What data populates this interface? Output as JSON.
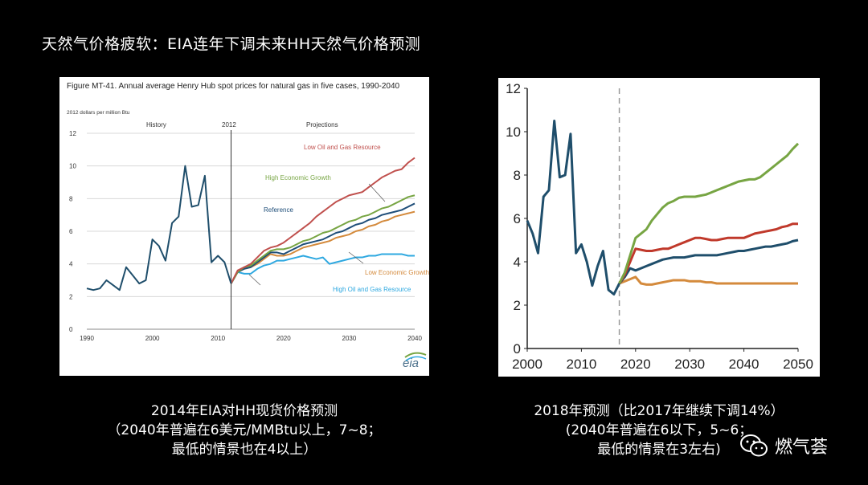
{
  "slide": {
    "title": "天然气价格疲软：EIA连年下调未来HH天然气价格预测"
  },
  "left_caption": {
    "line1": "2014年EIA对HH现货价格预测",
    "line2": "（2040年普遍在6美元/MMBtu以上，7~8；",
    "line3": "最低的情景也在4以上）"
  },
  "right_caption": {
    "line1": "2018年预测（比2017年继续下调14%）",
    "line2": "(2040年普遍在6以下，5~6；",
    "line3": "最低的情景在3左右)"
  },
  "watermark": {
    "text": "燃气荟",
    "icon": "wechat-icon"
  },
  "chart_data": [
    {
      "type": "line",
      "title": "Figure MT-41. Annual average Henry Hub spot prices for natural gas in five cases, 1990-2040",
      "ylabel": "2012 dollars per million Btu",
      "xlim": [
        1990,
        2040
      ],
      "ylim": [
        0,
        12
      ],
      "xticks": [
        1990,
        2000,
        2010,
        2020,
        2030,
        2040
      ],
      "yticks": [
        0,
        2,
        4,
        6,
        8,
        10,
        12
      ],
      "grid": true,
      "region_labels": {
        "history": "History",
        "divider": "2012",
        "projections": "Projections"
      },
      "divider_x": 2012,
      "logo": "eia",
      "series": [
        {
          "name": "History",
          "color": "#1f4e6b",
          "x": [
            1990,
            1991,
            1992,
            1993,
            1994,
            1995,
            1996,
            1997,
            1998,
            1999,
            2000,
            2001,
            2002,
            2003,
            2004,
            2005,
            2006,
            2007,
            2008,
            2009,
            2010,
            2011,
            2012
          ],
          "y": [
            2.5,
            2.4,
            2.5,
            3.0,
            2.7,
            2.4,
            3.8,
            3.3,
            2.8,
            3.0,
            5.5,
            5.1,
            4.2,
            6.5,
            6.9,
            10.0,
            7.5,
            7.6,
            9.4,
            4.1,
            4.5,
            4.1,
            2.8
          ]
        },
        {
          "name": "Low Oil and Gas Resource",
          "color": "#c0504d",
          "x": [
            2012,
            2013,
            2014,
            2015,
            2016,
            2017,
            2018,
            2019,
            2020,
            2021,
            2022,
            2023,
            2024,
            2025,
            2026,
            2027,
            2028,
            2029,
            2030,
            2031,
            2032,
            2033,
            2034,
            2035,
            2036,
            2037,
            2038,
            2039,
            2040
          ],
          "y": [
            2.8,
            3.6,
            3.8,
            4.0,
            4.4,
            4.8,
            5.0,
            5.1,
            5.3,
            5.6,
            5.9,
            6.2,
            6.5,
            6.9,
            7.2,
            7.5,
            7.8,
            8.0,
            8.2,
            8.3,
            8.4,
            8.7,
            9.0,
            9.3,
            9.5,
            9.7,
            9.8,
            10.2,
            10.5
          ]
        },
        {
          "name": "High Economic Growth",
          "color": "#77a543",
          "x": [
            2012,
            2013,
            2014,
            2015,
            2016,
            2017,
            2018,
            2019,
            2020,
            2021,
            2022,
            2023,
            2024,
            2025,
            2026,
            2027,
            2028,
            2029,
            2030,
            2031,
            2032,
            2033,
            2034,
            2035,
            2036,
            2037,
            2038,
            2039,
            2040
          ],
          "y": [
            2.8,
            3.5,
            3.8,
            3.9,
            4.2,
            4.5,
            4.8,
            4.9,
            4.9,
            5.0,
            5.2,
            5.4,
            5.5,
            5.7,
            5.9,
            6.0,
            6.2,
            6.4,
            6.6,
            6.7,
            6.9,
            7.0,
            7.2,
            7.4,
            7.5,
            7.7,
            7.9,
            8.1,
            8.2
          ]
        },
        {
          "name": "Reference",
          "color": "#1f4e79",
          "x": [
            2012,
            2013,
            2014,
            2015,
            2016,
            2017,
            2018,
            2019,
            2020,
            2021,
            2022,
            2023,
            2024,
            2025,
            2026,
            2027,
            2028,
            2029,
            2030,
            2031,
            2032,
            2033,
            2034,
            2035,
            2036,
            2037,
            2038,
            2039,
            2040
          ],
          "y": [
            2.8,
            3.5,
            3.7,
            3.8,
            4.1,
            4.4,
            4.7,
            4.7,
            4.6,
            4.8,
            5.0,
            5.2,
            5.3,
            5.4,
            5.5,
            5.7,
            5.9,
            6.0,
            6.2,
            6.4,
            6.5,
            6.7,
            6.8,
            7.0,
            7.1,
            7.2,
            7.3,
            7.5,
            7.7
          ]
        },
        {
          "name": "Low Economic Growth",
          "color": "#d48a3c",
          "x": [
            2012,
            2013,
            2014,
            2015,
            2016,
            2017,
            2018,
            2019,
            2020,
            2021,
            2022,
            2023,
            2024,
            2025,
            2026,
            2027,
            2028,
            2029,
            2030,
            2031,
            2032,
            2033,
            2034,
            2035,
            2036,
            2037,
            2038,
            2039,
            2040
          ],
          "y": [
            2.8,
            3.5,
            3.7,
            3.8,
            4.0,
            4.3,
            4.6,
            4.5,
            4.5,
            4.6,
            4.8,
            5.0,
            5.1,
            5.2,
            5.3,
            5.4,
            5.6,
            5.7,
            5.8,
            6.0,
            6.1,
            6.3,
            6.4,
            6.6,
            6.7,
            6.9,
            7.0,
            7.1,
            7.2
          ]
        },
        {
          "name": "High Oil and Gas Resource",
          "color": "#2ea8e0",
          "x": [
            2012,
            2013,
            2014,
            2015,
            2016,
            2017,
            2018,
            2019,
            2020,
            2021,
            2022,
            2023,
            2024,
            2025,
            2026,
            2027,
            2028,
            2029,
            2030,
            2031,
            2032,
            2033,
            2034,
            2035,
            2036,
            2037,
            2038,
            2039,
            2040
          ],
          "y": [
            2.8,
            3.5,
            3.4,
            3.4,
            3.7,
            3.9,
            4.0,
            4.2,
            4.2,
            4.3,
            4.4,
            4.5,
            4.4,
            4.3,
            4.4,
            4.0,
            4.1,
            4.2,
            4.3,
            4.4,
            4.4,
            4.5,
            4.5,
            4.6,
            4.6,
            4.6,
            4.6,
            4.5,
            4.5
          ]
        }
      ]
    },
    {
      "type": "line",
      "xlim": [
        2000,
        2050
      ],
      "ylim": [
        0,
        12
      ],
      "xticks": [
        2000,
        2010,
        2020,
        2030,
        2040,
        2050
      ],
      "yticks": [
        0,
        2,
        4,
        6,
        8,
        10,
        12
      ],
      "grid": false,
      "divider_x": 2017,
      "series": [
        {
          "color": "#1f4e6b",
          "x": [
            2000,
            2001,
            2002,
            2003,
            2004,
            2005,
            2006,
            2007,
            2008,
            2009,
            2010,
            2011,
            2012,
            2013,
            2014,
            2015,
            2016,
            2017
          ],
          "y": [
            5.9,
            5.3,
            4.4,
            7.0,
            7.3,
            10.5,
            7.9,
            8.0,
            9.9,
            4.4,
            4.8,
            4.0,
            2.9,
            3.8,
            4.5,
            2.7,
            2.5,
            3.0
          ]
        },
        {
          "color": "#77a543",
          "x": [
            2017,
            2018,
            2019,
            2020,
            2021,
            2022,
            2023,
            2024,
            2025,
            2026,
            2027,
            2028,
            2029,
            2030,
            2031,
            2032,
            2033,
            2034,
            2035,
            2036,
            2037,
            2038,
            2039,
            2040,
            2041,
            2042,
            2043,
            2044,
            2045,
            2046,
            2047,
            2048,
            2049,
            2050
          ],
          "y": [
            3.0,
            3.5,
            4.3,
            5.1,
            5.3,
            5.5,
            5.9,
            6.2,
            6.5,
            6.7,
            6.8,
            6.95,
            7.0,
            7.0,
            7.0,
            7.05,
            7.1,
            7.2,
            7.3,
            7.4,
            7.5,
            7.6,
            7.7,
            7.75,
            7.8,
            7.8,
            7.9,
            8.1,
            8.3,
            8.5,
            8.7,
            8.9,
            9.2,
            9.45
          ]
        },
        {
          "color": "#c0392b",
          "x": [
            2017,
            2018,
            2019,
            2020,
            2021,
            2022,
            2023,
            2024,
            2025,
            2026,
            2027,
            2028,
            2029,
            2030,
            2031,
            2032,
            2033,
            2034,
            2035,
            2036,
            2037,
            2038,
            2039,
            2040,
            2041,
            2042,
            2043,
            2044,
            2045,
            2046,
            2047,
            2048,
            2049,
            2050
          ],
          "y": [
            3.0,
            3.4,
            4.0,
            4.6,
            4.55,
            4.5,
            4.5,
            4.55,
            4.6,
            4.6,
            4.7,
            4.8,
            4.9,
            5.0,
            5.1,
            5.1,
            5.05,
            5.0,
            5.0,
            5.05,
            5.1,
            5.1,
            5.1,
            5.1,
            5.2,
            5.3,
            5.35,
            5.4,
            5.45,
            5.5,
            5.6,
            5.65,
            5.75,
            5.75
          ]
        },
        {
          "color": "#1f4e6b",
          "x": [
            2017,
            2018,
            2019,
            2020,
            2021,
            2022,
            2023,
            2024,
            2025,
            2026,
            2027,
            2028,
            2029,
            2030,
            2031,
            2032,
            2033,
            2034,
            2035,
            2036,
            2037,
            2038,
            2039,
            2040,
            2041,
            2042,
            2043,
            2044,
            2045,
            2046,
            2047,
            2048,
            2049,
            2050
          ],
          "y": [
            3.0,
            3.3,
            3.7,
            3.6,
            3.7,
            3.8,
            3.9,
            4.0,
            4.1,
            4.15,
            4.2,
            4.2,
            4.2,
            4.25,
            4.3,
            4.3,
            4.3,
            4.3,
            4.3,
            4.35,
            4.4,
            4.45,
            4.5,
            4.5,
            4.55,
            4.6,
            4.65,
            4.7,
            4.7,
            4.75,
            4.8,
            4.85,
            4.95,
            5.0
          ]
        },
        {
          "color": "#d48a3c",
          "x": [
            2017,
            2018,
            2019,
            2020,
            2021,
            2022,
            2023,
            2024,
            2025,
            2026,
            2027,
            2028,
            2029,
            2030,
            2031,
            2032,
            2033,
            2034,
            2035,
            2036,
            2037,
            2038,
            2039,
            2040,
            2041,
            2042,
            2043,
            2044,
            2045,
            2046,
            2047,
            2048,
            2049,
            2050
          ],
          "y": [
            3.0,
            3.1,
            3.2,
            3.3,
            3.0,
            2.95,
            2.95,
            3.0,
            3.05,
            3.1,
            3.15,
            3.15,
            3.15,
            3.1,
            3.1,
            3.1,
            3.05,
            3.05,
            3.0,
            3.0,
            3.0,
            3.0,
            3.0,
            3.0,
            3.0,
            3.0,
            3.0,
            3.0,
            3.0,
            3.0,
            3.0,
            3.0,
            3.0,
            3.0
          ]
        }
      ]
    }
  ]
}
